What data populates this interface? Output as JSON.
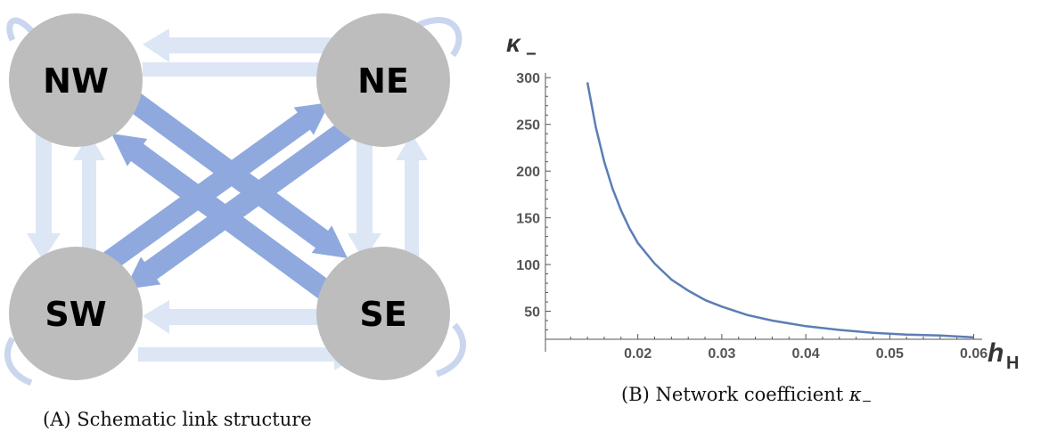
{
  "diagram": {
    "nodes": [
      {
        "id": "nw",
        "label": "NW"
      },
      {
        "id": "ne",
        "label": "NE"
      },
      {
        "id": "sw",
        "label": "SW"
      },
      {
        "id": "se",
        "label": "SE"
      }
    ],
    "colors": {
      "node_fill": "#bdbdbd",
      "diagonal_arrow": "#8fa9de",
      "side_arrow": "#dde6f5",
      "self_loop": "#c9d6ee"
    }
  },
  "captions": {
    "a_label": "(A)",
    "a_text": "Schematic link structure",
    "b_label": "(B)",
    "b_text": "Network coefficient",
    "b_math": "κ",
    "b_math_sub": "−"
  },
  "chart_data": {
    "type": "line",
    "title": "",
    "xlabel": "h",
    "xlabel_sub": "H",
    "ylabel": "κ",
    "ylabel_sub": "−",
    "xlim": [
      0.009,
      0.061
    ],
    "ylim": [
      20,
      305
    ],
    "xticks": [
      0.02,
      0.03,
      0.04,
      0.05,
      0.06
    ],
    "xtick_labels": [
      "0.02",
      "0.03",
      "0.04",
      "0.05",
      "0.06"
    ],
    "yticks": [
      50,
      100,
      150,
      200,
      250,
      300
    ],
    "ytick_labels": [
      "50",
      "100",
      "150",
      "200",
      "250",
      "300"
    ],
    "grid": false,
    "line_color": "#5b7db5",
    "series": [
      {
        "x": [
          0.014,
          0.015,
          0.016,
          0.017,
          0.018,
          0.019,
          0.02,
          0.022,
          0.024,
          0.026,
          0.028,
          0.03,
          0.033,
          0.036,
          0.04,
          0.044,
          0.048,
          0.052,
          0.056,
          0.06
        ],
        "values": [
          295,
          247,
          210,
          181,
          158,
          139,
          123,
          101,
          84,
          72,
          62,
          55,
          46,
          40,
          34,
          30,
          27,
          25,
          24,
          22
        ]
      }
    ]
  }
}
